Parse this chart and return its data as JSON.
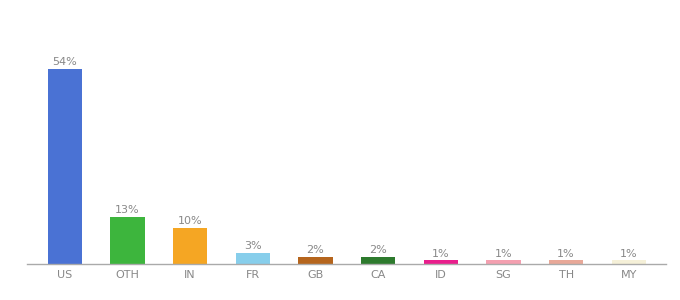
{
  "categories": [
    "US",
    "OTH",
    "IN",
    "FR",
    "GB",
    "CA",
    "ID",
    "SG",
    "TH",
    "MY"
  ],
  "values": [
    54,
    13,
    10,
    3,
    2,
    2,
    1,
    1,
    1,
    1
  ],
  "labels": [
    "54%",
    "13%",
    "10%",
    "3%",
    "2%",
    "2%",
    "1%",
    "1%",
    "1%",
    "1%"
  ],
  "colors": [
    "#4a72d4",
    "#3db53d",
    "#f5a623",
    "#87ceeb",
    "#b5651d",
    "#2d7a2d",
    "#e91e8c",
    "#f4a0b0",
    "#e8a898",
    "#f5f0d8"
  ],
  "background_color": "#ffffff",
  "label_color": "#888888",
  "label_fontsize": 8,
  "tick_fontsize": 8,
  "ylim": [
    0,
    63
  ],
  "bar_width": 0.55
}
